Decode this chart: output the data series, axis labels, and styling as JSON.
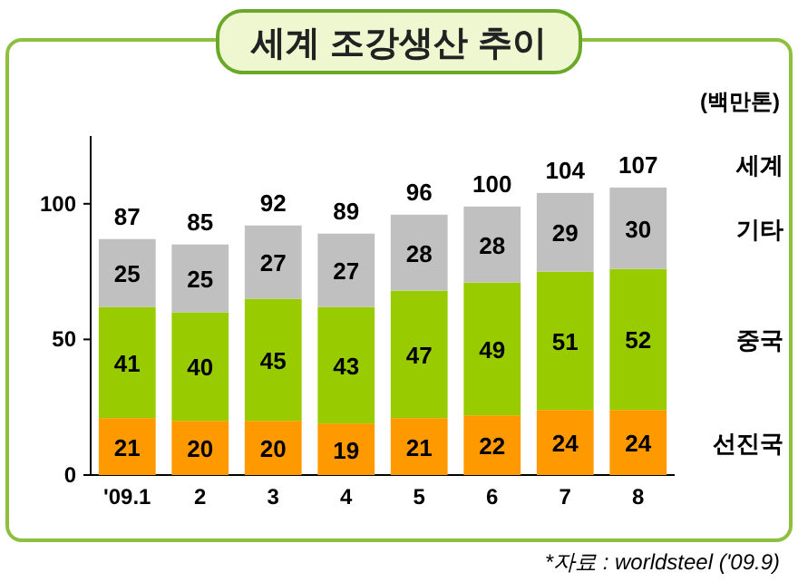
{
  "chart_data": {
    "type": "bar",
    "title": "세계 조강생산 추이",
    "ylabel": "(백만톤)",
    "categories": [
      "'09.1",
      "2",
      "3",
      "4",
      "5",
      "6",
      "7",
      "8"
    ],
    "stacked": true,
    "data_labels": true,
    "legend": "right",
    "grid": false,
    "ylim": [
      0,
      125
    ],
    "yticks": [
      0,
      50,
      100
    ],
    "series": [
      {
        "name": "선진국",
        "color": "#ff9900",
        "values": [
          21,
          20,
          20,
          19,
          21,
          22,
          24,
          24
        ]
      },
      {
        "name": "중국",
        "color": "#99cc00",
        "values": [
          41,
          40,
          45,
          43,
          47,
          49,
          51,
          52
        ]
      },
      {
        "name": "기타",
        "color": "#c0c0c0",
        "values": [
          25,
          25,
          27,
          27,
          28,
          28,
          29,
          30
        ]
      }
    ],
    "totals": [
      "87",
      "85",
      "92",
      "89",
      "96",
      "100",
      "104",
      "107"
    ],
    "annotations": [
      "세계",
      "*자료 : worldsteel ('09.9)"
    ]
  }
}
